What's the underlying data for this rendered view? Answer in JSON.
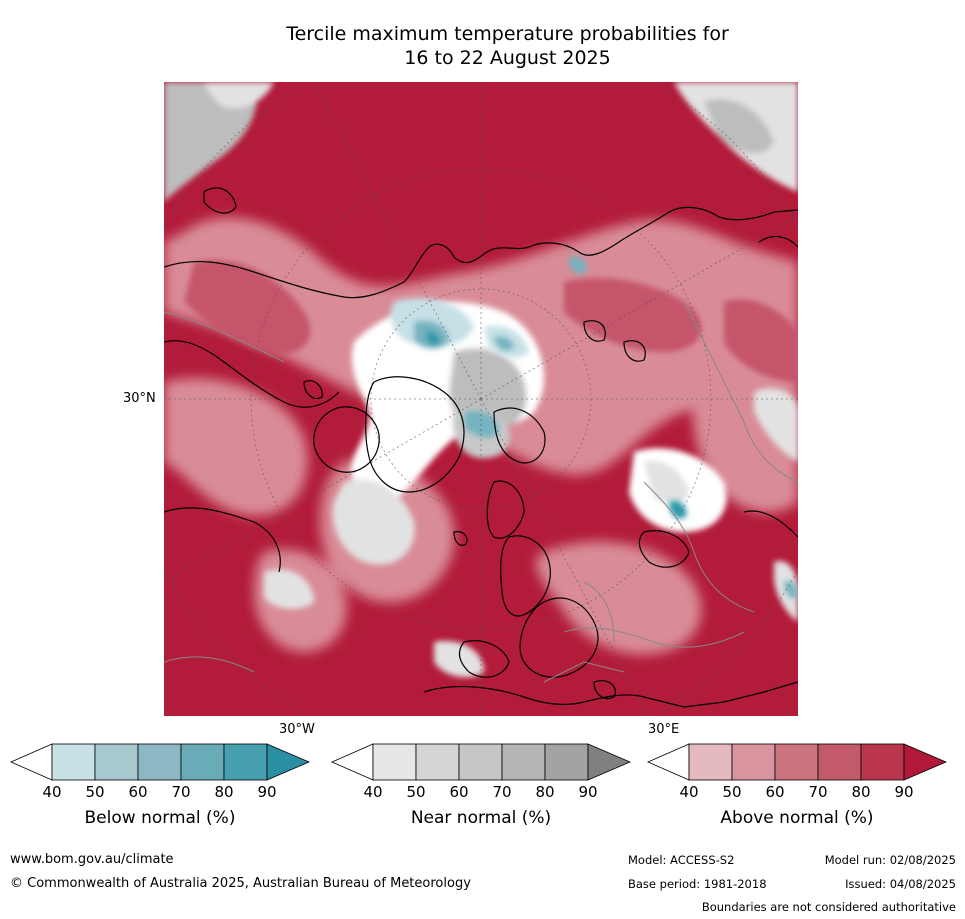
{
  "title_line1": "Tercile maximum temperature probabilities for",
  "title_line2": "16 to 22 August 2025",
  "map": {
    "lat_label": "30°N",
    "lon_label_left": "30°W",
    "lon_label_right": "30°E",
    "colors": {
      "above_dark": "#b21b39",
      "above_mid": "#c5546a",
      "above_light": "#d98c98",
      "above_pale": "#e4b5bc",
      "near_light": "#e2e2e2",
      "near_mid": "#bdbdbd",
      "below_light": "#c6e0e6",
      "below_mid": "#74b3c0",
      "below_dark": "#2f98aa",
      "land_outline": "#000000",
      "border": "#888888"
    }
  },
  "colorbars": [
    {
      "label": "Below normal (%)",
      "ticks": [
        "40",
        "50",
        "60",
        "70",
        "80",
        "90"
      ],
      "colors": [
        "#ffffff",
        "#c8e1e7",
        "#a7c8ce",
        "#8db8c3",
        "#6aabb8",
        "#46a0b0",
        "#2a8fa3"
      ]
    },
    {
      "label": "Near normal (%)",
      "ticks": [
        "40",
        "50",
        "60",
        "70",
        "80",
        "90"
      ],
      "colors": [
        "#ffffff",
        "#e6e6e6",
        "#d5d5d5",
        "#c6c6c6",
        "#b5b5b5",
        "#a3a3a3",
        "#808080"
      ]
    },
    {
      "label": "Above normal (%)",
      "ticks": [
        "40",
        "50",
        "60",
        "70",
        "80",
        "90"
      ],
      "colors": [
        "#ffffff",
        "#e4b9bf",
        "#d8959f",
        "#cb737f",
        "#c25a69",
        "#b9364d",
        "#b01a38"
      ]
    }
  ],
  "footer": {
    "website": "www.bom.gov.au/climate",
    "copyright": "© Commonwealth of Australia 2025, Australian Bureau of Meteorology",
    "model": "Model: ACCESS-S2",
    "model_run": "Model run: 02/08/2025",
    "base_period": "Base period: 1981-2018",
    "issued": "Issued: 04/08/2025",
    "disclaimer": "Boundaries are not considered authoritative"
  }
}
